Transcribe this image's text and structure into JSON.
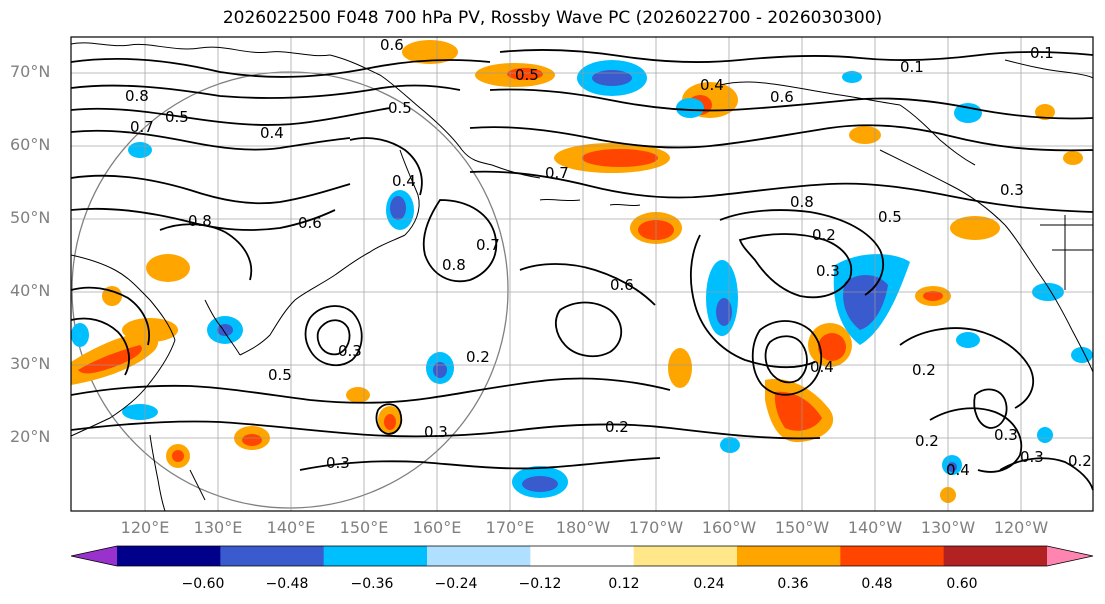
{
  "title": "2026022500 F048 700 hPa PV, Rossby Wave PC (2026022700 - 2026030300)",
  "lat_labels": [
    "70°N",
    "60°N",
    "50°N",
    "40°N",
    "30°N",
    "20°N"
  ],
  "lon_labels": [
    "120°E",
    "130°E",
    "140°E",
    "150°E",
    "160°E",
    "170°E",
    "180°W",
    "170°W",
    "160°W",
    "150°W",
    "140°W",
    "130°W",
    "120°W"
  ],
  "colorbar": {
    "ticks": [
      "−0.60",
      "−0.48",
      "−0.36",
      "−0.24",
      "−0.12",
      "0.12",
      "0.24",
      "0.36",
      "0.48",
      "0.60"
    ],
    "colors": [
      "#9932cc",
      "#00008b",
      "#3a5bcd",
      "#00bfff",
      "#b0e0ff",
      "#ffffff",
      "#ffe78a",
      "#ffa500",
      "#ff4500",
      "#b22222",
      "#ff85b0"
    ]
  },
  "contour_labels": [
    "0.8",
    "0.7",
    "0.5",
    "0.4",
    "0.4",
    "0.5",
    "0.7",
    "0.8",
    "0.6",
    "0.7",
    "0.8",
    "0.6",
    "0.2",
    "0.5",
    "0.3",
    "0.2",
    "0.3",
    "0.3",
    "0.3",
    "0.2",
    "0.2",
    "0.8",
    "0.5",
    "0.2",
    "0.3",
    "0.4",
    "0.6",
    "0.4",
    "0.5",
    "0.6",
    "0.1",
    "0.1",
    "0.2",
    "0.3",
    "0.4",
    "0.3"
  ]
}
